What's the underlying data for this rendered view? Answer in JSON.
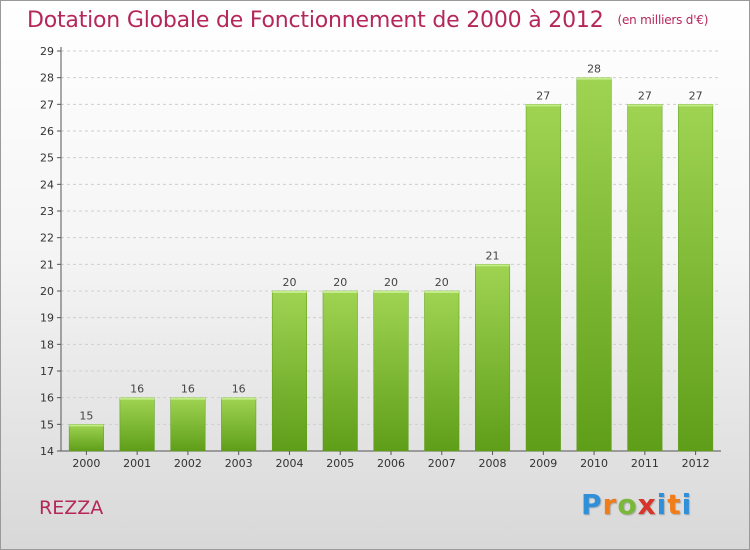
{
  "title": "Dotation Globale de Fonctionnement de 2000 à 2012",
  "unit_note": "(en milliers d'€)",
  "commune": "REZZA",
  "logo": {
    "text": "Proxiti"
  },
  "colors": {
    "title": "#b5275a",
    "bar_top": "#9fd452",
    "bar_bottom": "#5f9e19",
    "gridline": "#cfcfcf"
  },
  "chart_data": {
    "type": "bar",
    "categories": [
      "2000",
      "2001",
      "2002",
      "2003",
      "2004",
      "2005",
      "2006",
      "2007",
      "2008",
      "2009",
      "2010",
      "2011",
      "2012"
    ],
    "values": [
      15,
      16,
      16,
      16,
      20,
      20,
      20,
      20,
      21,
      27,
      28,
      27,
      27
    ],
    "ylim": [
      14,
      29
    ],
    "yticks": [
      14,
      15,
      16,
      17,
      18,
      19,
      20,
      21,
      22,
      23,
      24,
      25,
      26,
      27,
      28,
      29
    ],
    "grid": true,
    "legend": "none",
    "data_labels": true
  }
}
